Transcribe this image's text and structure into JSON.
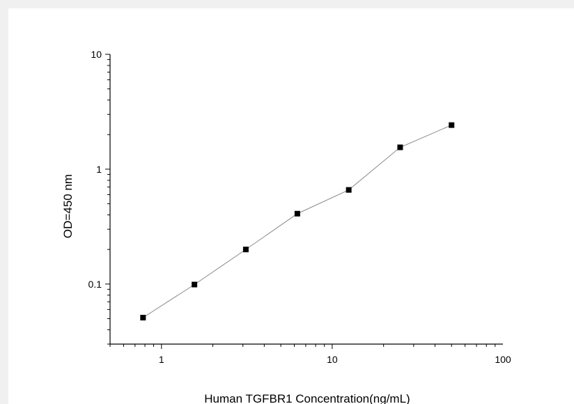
{
  "chart_data": {
    "type": "scatter",
    "title": "",
    "xlabel": "Human TGFBR1 Concentration(ng/mL)",
    "ylabel": "OD=450 nm",
    "xscale": "log",
    "yscale": "log",
    "xlim": [
      0.5,
      100
    ],
    "ylim": [
      0.03,
      10
    ],
    "x_ticks": [
      {
        "value": 1,
        "label": "1"
      },
      {
        "value": 10,
        "label": "10"
      },
      {
        "value": 100,
        "label": "100"
      }
    ],
    "y_ticks": [
      {
        "value": 0.1,
        "label": "0.1"
      },
      {
        "value": 1,
        "label": "1"
      },
      {
        "value": 10,
        "label": "10"
      }
    ],
    "grid": false,
    "legend": "none",
    "series": [
      {
        "x": [
          0.78,
          1.56,
          3.12,
          6.25,
          12.5,
          25,
          50
        ],
        "y": [
          0.051,
          0.099,
          0.2,
          0.41,
          0.66,
          1.55,
          2.42
        ],
        "marker": "square",
        "line": true
      }
    ],
    "colors": {
      "marker": "#000000",
      "line": "#888888",
      "axis": "#000000"
    }
  }
}
